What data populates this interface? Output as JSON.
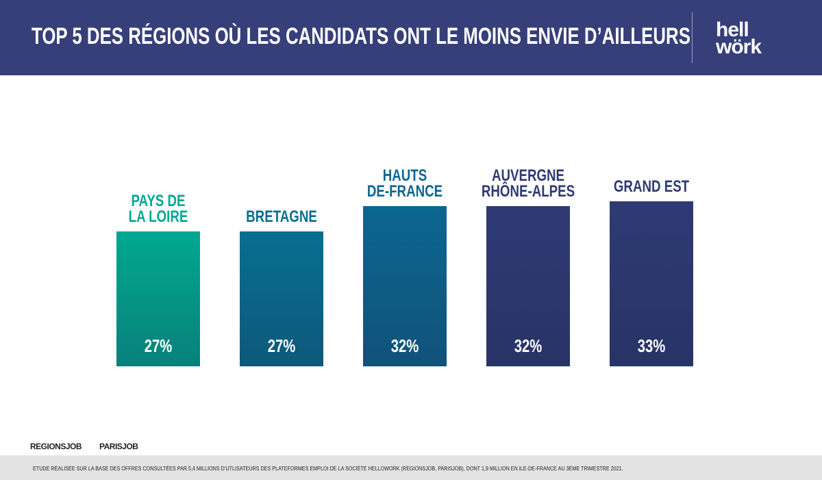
{
  "header": {
    "title": "TOP 5 DES RÉGIONS OÙ LES CANDIDATS ONT LE MOINS ENVIE D’AILLEURS",
    "logo": [
      "hell",
      "wörk"
    ]
  },
  "chart_data": {
    "type": "bar",
    "categories": [
      "PAYS DE\nLA LOIRE",
      "BRETAGNE",
      "HAUTS\nDE-FRANCE",
      "AUVERGNE\nRHÔNE-ALPES",
      "GRAND EST"
    ],
    "values": [
      27,
      27,
      32,
      32,
      33
    ],
    "value_labels": [
      "27%",
      "27%",
      "32%",
      "32%",
      "33%"
    ],
    "colors": [
      "#00a891",
      "#076f90",
      "#0b6690",
      "#2e3a74",
      "#2e3a74"
    ]
  },
  "footer": {
    "logos": [
      "REGIONSJOB",
      "PARISJOB"
    ],
    "note": "ETUDE RÉALISÉE SUR LA BASE DES OFFRES CONSULTÉES PAR 5,4 MILLIONS D’UTLISATEURS DES PLATEFORMES EMPLOI DE LA SOCIÉTÉ HELLOWORK (REGIONSJOB, PARISJOB), DONT 1,9 MILLION EN ILE-DE-FRANCE AU 3ÈME TRIMESTRE 2021."
  }
}
